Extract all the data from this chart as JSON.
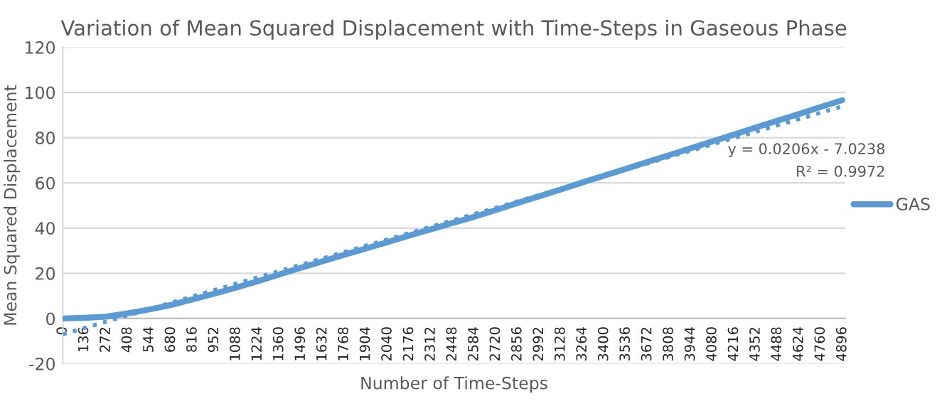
{
  "chart_data": {
    "type": "line",
    "title": "Variation of Mean Squared Displacement with Time-Steps in Gaseous Phase",
    "xlabel": "Number of Time-Steps",
    "ylabel": "Mean Squared Displacement",
    "x": [
      0,
      136,
      272,
      408,
      544,
      680,
      816,
      952,
      1088,
      1224,
      1360,
      1496,
      1632,
      1768,
      1904,
      2040,
      2176,
      2312,
      2448,
      2584,
      2720,
      2856,
      2992,
      3128,
      3264,
      3400,
      3536,
      3672,
      3808,
      3944,
      4080,
      4216,
      4352,
      4488,
      4624,
      4760,
      4896
    ],
    "series": [
      {
        "name": "GAS",
        "color": "#5b9bd5",
        "values": [
          0,
          0.3,
          0.8,
          2.3,
          4,
          6,
          8.5,
          11,
          13.7,
          16.5,
          19.5,
          22.5,
          25.3,
          28.2,
          31,
          33.8,
          36.7,
          39.5,
          42.3,
          45.0,
          48.0,
          51.1,
          54.1,
          57.1,
          60.2,
          63.2,
          66.2,
          69.3,
          72.3,
          75.3,
          78.4,
          81.4,
          84.5,
          87.5,
          90.5,
          93.6,
          96.6
        ]
      },
      {
        "type": "line",
        "line_style": "dotted",
        "color": "#5b9bd5",
        "x": [
          0,
          4913
        ],
        "values": [
          -7.0,
          94.2
        ]
      }
    ],
    "xlim": [
      0,
      4913
    ],
    "xticks": [
      0,
      136,
      272,
      408,
      544,
      680,
      816,
      952,
      1088,
      1224,
      1360,
      1496,
      1632,
      1768,
      1904,
      2040,
      2176,
      2312,
      2448,
      2584,
      2720,
      2856,
      2992,
      3128,
      3264,
      3400,
      3536,
      3672,
      3808,
      3944,
      4080,
      4216,
      4352,
      4488,
      4624,
      4760,
      4896
    ],
    "ylim": [
      -20,
      120
    ],
    "yticks": [
      -20,
      0,
      20,
      40,
      60,
      80,
      100,
      120
    ],
    "annotations": [
      "y = 0.0206x - 7.0238",
      "R² = 0.9972"
    ],
    "grid": "y",
    "legend": "right",
    "line_style": "solid",
    "marker": "none"
  }
}
